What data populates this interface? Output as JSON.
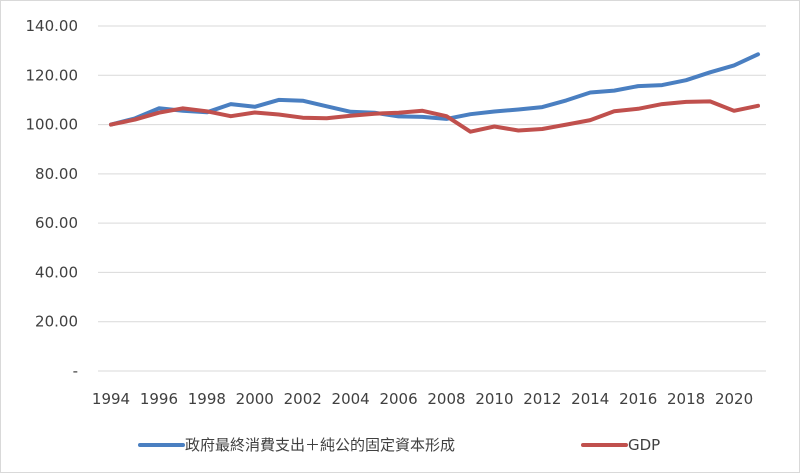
{
  "chart_data": {
    "type": "line",
    "x": [
      1994,
      1995,
      1996,
      1997,
      1998,
      1999,
      2000,
      2001,
      2002,
      2003,
      2004,
      2005,
      2006,
      2007,
      2008,
      2009,
      2010,
      2011,
      2012,
      2013,
      2014,
      2015,
      2016,
      2017,
      2018,
      2019,
      2020,
      2021
    ],
    "series": [
      {
        "name": "政府最終消費支出＋純公的固定資本形成",
        "color": "#4a7fc1",
        "values": [
          100.0,
          102.5,
          106.6,
          105.6,
          105.0,
          108.3,
          107.2,
          110.0,
          109.7,
          107.4,
          105.2,
          104.8,
          103.3,
          103.1,
          102.3,
          104.2,
          105.3,
          106.1,
          107.1,
          109.8,
          113.0,
          113.8,
          115.6,
          116.0,
          118.0,
          121.2,
          124.0,
          128.5
        ]
      },
      {
        "name": "GDP",
        "color": "#c0504d",
        "values": [
          100.0,
          102.0,
          104.8,
          106.6,
          105.4,
          103.4,
          104.9,
          104.1,
          102.8,
          102.6,
          103.6,
          104.4,
          104.8,
          105.6,
          103.4,
          97.1,
          99.2,
          97.6,
          98.2,
          100.0,
          101.8,
          105.4,
          106.4,
          108.3,
          109.2,
          109.4,
          105.6,
          107.6
        ]
      }
    ],
    "ylim": [
      0,
      140
    ],
    "yticks": [
      {
        "value": 0,
        "label": "-"
      },
      {
        "value": 20,
        "label": "20.00"
      },
      {
        "value": 40,
        "label": "40.00"
      },
      {
        "value": 60,
        "label": "60.00"
      },
      {
        "value": 80,
        "label": "80.00"
      },
      {
        "value": 100,
        "label": "100.00"
      },
      {
        "value": 120,
        "label": "120.00"
      },
      {
        "value": 140,
        "label": "140.00"
      }
    ],
    "xticks": [
      "1994",
      "1996",
      "1998",
      "2000",
      "2002",
      "2004",
      "2006",
      "2008",
      "2010",
      "2012",
      "2014",
      "2016",
      "2018",
      "2020"
    ],
    "grid": "horizontal",
    "legend_position": "bottom",
    "title": "",
    "xlabel": "",
    "ylabel": ""
  }
}
